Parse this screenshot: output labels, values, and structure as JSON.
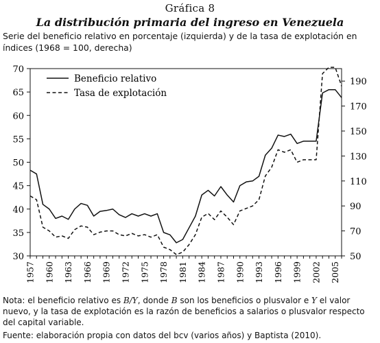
{
  "figure": {
    "label": "Gráfica 8",
    "title": "La distribución primaria del ingreso en Venezuela",
    "subtitle": "Serie del beneficio relativo en porcentaje (izquierda) y de la tasa de explotación en índices (1968 = 100, derecha)",
    "note_parts": [
      {
        "t": "Nota: el beneficio relativo es "
      },
      {
        "t": "B/Y",
        "i": true
      },
      {
        "t": ", donde "
      },
      {
        "t": "B",
        "i": true
      },
      {
        "t": " son los beneficios o plusvalor e "
      },
      {
        "t": "Y",
        "i": true
      },
      {
        "t": " el valor nuevo, y la tasa de explotación es la razón de beneficios a salarios o plusvalor respecto del capital variable."
      }
    ],
    "source": "Fuente: elaboración propia con datos del bcv (varios años) y Baptista (2010)."
  },
  "chart_data": {
    "type": "line",
    "x": [
      1957,
      1958,
      1959,
      1960,
      1961,
      1962,
      1963,
      1964,
      1965,
      1966,
      1967,
      1968,
      1969,
      1970,
      1971,
      1972,
      1973,
      1974,
      1975,
      1976,
      1977,
      1978,
      1979,
      1980,
      1981,
      1982,
      1983,
      1984,
      1985,
      1986,
      1987,
      1988,
      1989,
      1990,
      1991,
      1992,
      1993,
      1994,
      1995,
      1996,
      1997,
      1998,
      1999,
      2000,
      2001,
      2002,
      2003,
      2004,
      2005,
      2006
    ],
    "x_ticks": [
      1957,
      1960,
      1963,
      1966,
      1969,
      1972,
      1975,
      1978,
      1981,
      1984,
      1987,
      1990,
      1993,
      1996,
      1999,
      2002,
      2005
    ],
    "y_left": {
      "ticks": [
        30,
        35,
        40,
        45,
        50,
        55,
        60,
        65,
        70
      ],
      "range": [
        30,
        70
      ]
    },
    "y_right": {
      "ticks": [
        50,
        70,
        90,
        110,
        130,
        150,
        170,
        190
      ],
      "range": [
        50,
        200
      ]
    },
    "series": [
      {
        "name": "Beneficio relativo",
        "axis": "left",
        "style": "solid",
        "values": [
          48.3,
          47.5,
          41.0,
          40.0,
          38.0,
          38.5,
          37.8,
          40.0,
          41.2,
          40.8,
          38.5,
          39.5,
          39.7,
          40.0,
          38.8,
          38.2,
          39.0,
          38.5,
          39.0,
          38.5,
          39.0,
          35.0,
          34.5,
          32.8,
          33.5,
          36.0,
          38.5,
          43.0,
          44.0,
          42.8,
          44.8,
          43.0,
          41.5,
          45.0,
          45.8,
          46.0,
          47.0,
          51.5,
          53.0,
          55.8,
          55.5,
          56.0,
          54.0,
          54.5,
          54.5,
          54.5,
          64.8,
          65.5,
          65.5,
          63.8
        ]
      },
      {
        "name": "Tasa de explotación",
        "axis": "right",
        "style": "dashed",
        "values": [
          98,
          95,
          73,
          70,
          65,
          66,
          64,
          71,
          74,
          73,
          67,
          69,
          70,
          70,
          67,
          66,
          68,
          66,
          67,
          65,
          67,
          57,
          55,
          51,
          53,
          59,
          67,
          81,
          84,
          79,
          86,
          81,
          75,
          86,
          88,
          90,
          95,
          114,
          121,
          135,
          133,
          135,
          125,
          127,
          127,
          127,
          196,
          201,
          201,
          186
        ]
      }
    ],
    "legend": "top-left",
    "grid": false
  }
}
